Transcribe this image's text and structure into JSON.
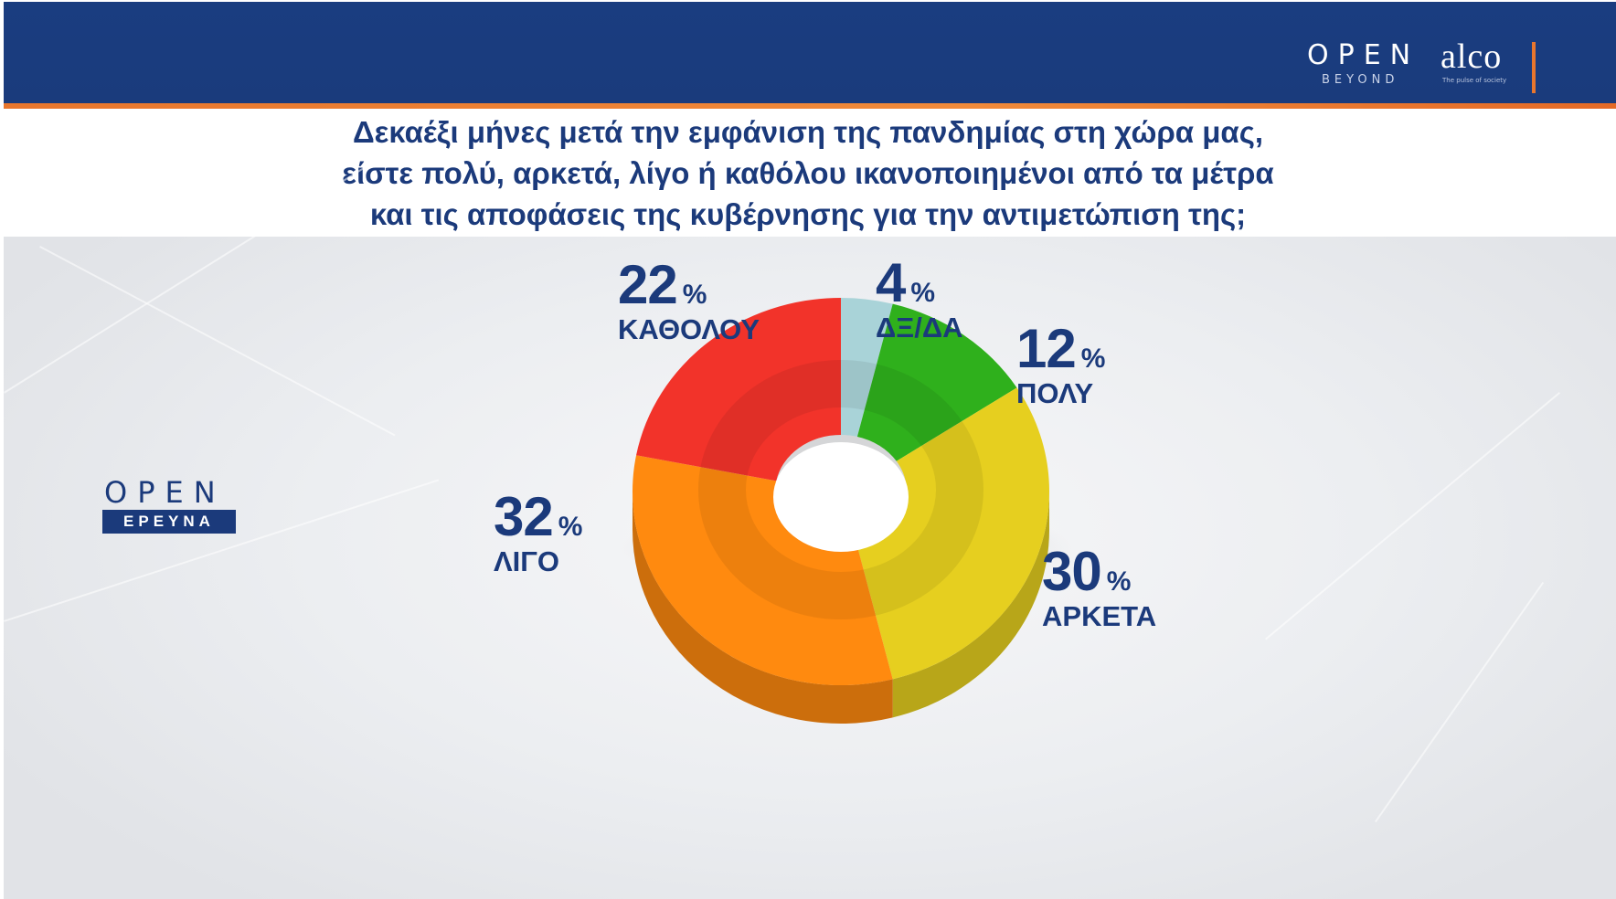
{
  "header": {
    "logo_open_text": "OPEN",
    "logo_open_sub": "BEYOND",
    "logo_alco_text": "alco",
    "logo_alco_sub": "The pulse of society"
  },
  "question_lines": [
    "Δεκαέξι μήνες μετά την εμφάνιση της πανδημίας στη χώρα μας,",
    "είστε πολύ, αρκετά, λίγο ή καθόλου ικανοποιημένοι από τα μέτρα",
    "και τις αποφάσεις της κυβέρνησης για την αντιμετώπιση της;"
  ],
  "side_logo": {
    "text": "OPEN",
    "tag": "ΕΡΕΥΝΑ"
  },
  "chart_data": {
    "type": "pie",
    "style": "3d-donut",
    "title": "",
    "unit": "%",
    "slices": [
      {
        "label": "ΔΞ/ΔΑ",
        "value": 4,
        "color": "#a9d3d8"
      },
      {
        "label": "ΠΟΛΥ",
        "value": 12,
        "color": "#2fb01c"
      },
      {
        "label": "ΑΡΚΕΤΑ",
        "value": 30,
        "color": "#e6cf1f"
      },
      {
        "label": "ΛΙΓΟ",
        "value": 32,
        "color": "#ff8a0f"
      },
      {
        "label": "ΚΑΘΟΛΟΥ",
        "value": 22,
        "color": "#f2332a"
      }
    ]
  }
}
